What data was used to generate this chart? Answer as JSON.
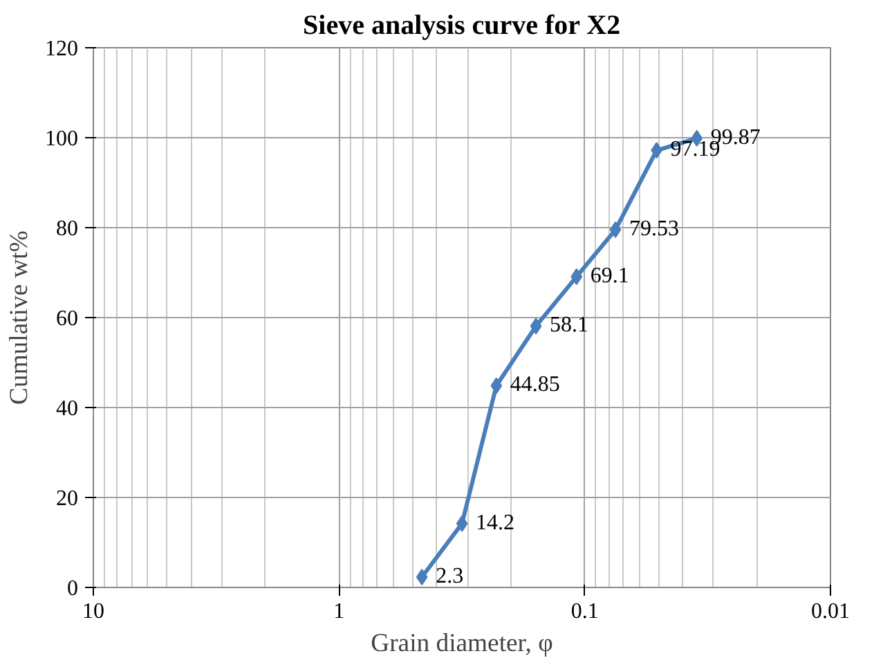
{
  "chart_data": {
    "type": "line",
    "title": "Sieve analysis curve for X2",
    "xlabel": "Grain diameter, φ",
    "ylabel": "Cumulative wt%",
    "x": [
      0.46,
      0.316,
      0.229,
      0.158,
      0.108,
      0.075,
      0.051,
      0.035
    ],
    "series": [
      {
        "color": "#4a7ebb",
        "values": [
          2.3,
          14.2,
          44.85,
          58.1,
          69.1,
          79.53,
          97.19,
          99.87
        ]
      }
    ],
    "log": "x",
    "xlim": [
      10,
      0.01
    ],
    "xticks": [
      10,
      1,
      0.1,
      0.01
    ],
    "ylim": [
      0,
      120
    ],
    "yticks": [
      0,
      20,
      40,
      60,
      80,
      100,
      120
    ],
    "grid": true,
    "marker": "diamond",
    "line_style": "solid",
    "data_labels": true
  }
}
